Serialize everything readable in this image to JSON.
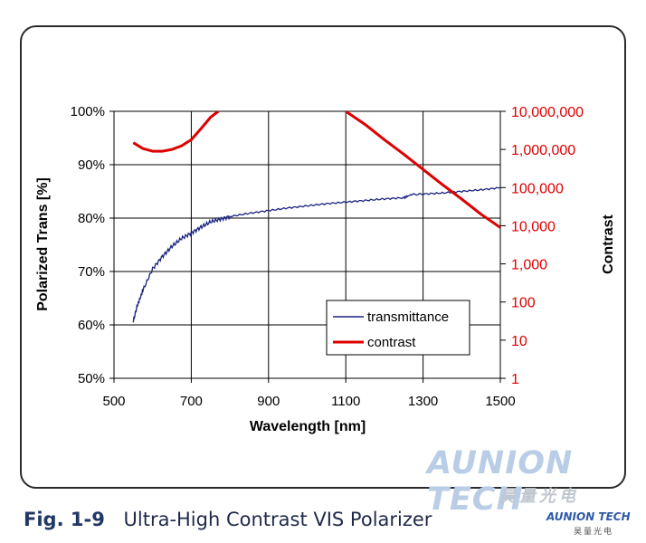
{
  "caption": {
    "number": "Fig. 1-9",
    "text": "Ultra-High Contrast VIS Polarizer"
  },
  "watermark": {
    "main": "AUNION TECH",
    "sub": "昊量光电",
    "small": "AUNION TECH",
    "small_sub": "昊量光电"
  },
  "chart_data": {
    "type": "line",
    "xlabel": "Wavelength [nm]",
    "ylabel_left": "Polarized Trans [%]",
    "ylabel_right": "Contrast",
    "xlim": [
      500,
      1500
    ],
    "ylim_left": [
      50,
      100
    ],
    "ylim_right": [
      1,
      10000000
    ],
    "right_axis_scale": "log",
    "grid": true,
    "legend_position": "center-right",
    "x_ticks": [
      "500",
      "700",
      "900",
      "1100",
      "1300",
      "1500"
    ],
    "y_ticks_left": [
      "50%",
      "60%",
      "70%",
      "80%",
      "90%",
      "100%"
    ],
    "y_ticks_right": [
      "1",
      "10",
      "100",
      "1,000",
      "10,000",
      "100,000",
      "1,000,000",
      "10,000,000"
    ],
    "series": [
      {
        "name": "transmittance",
        "axis": "left",
        "color": "#1a237e",
        "x": [
          550,
          560,
          575,
          600,
          625,
          650,
          675,
          700,
          725,
          750,
          775,
          800,
          850,
          900,
          950,
          1000,
          1050,
          1100,
          1150,
          1200,
          1250,
          1270,
          1300,
          1350,
          1400,
          1450,
          1500
        ],
        "y": [
          60.8,
          63.5,
          66.5,
          70.5,
          72.8,
          74.7,
          76.2,
          77.2,
          78.3,
          79.3,
          79.8,
          80.3,
          80.9,
          81.4,
          81.9,
          82.3,
          82.7,
          83.0,
          83.3,
          83.6,
          83.8,
          84.4,
          84.5,
          84.7,
          85.0,
          85.3,
          85.7
        ]
      },
      {
        "name": "contrast",
        "axis": "right",
        "color": "#dd0000",
        "segments": [
          {
            "x": [
              550,
              575,
              600,
              625,
              650,
              675,
              700,
              725,
              750,
              770
            ],
            "y": [
              1500000,
              1050000,
              900000,
              900000,
              1000000,
              1250000,
              1800000,
              3500000,
              7000000,
              10000000
            ]
          },
          {
            "x": [
              1100,
              1150,
              1200,
              1250,
              1300,
              1350,
              1400,
              1450,
              1500
            ],
            "y": [
              10000000,
              4500000,
              1800000,
              750000,
              300000,
              120000,
              50000,
              20000,
              9000
            ]
          }
        ]
      }
    ]
  }
}
